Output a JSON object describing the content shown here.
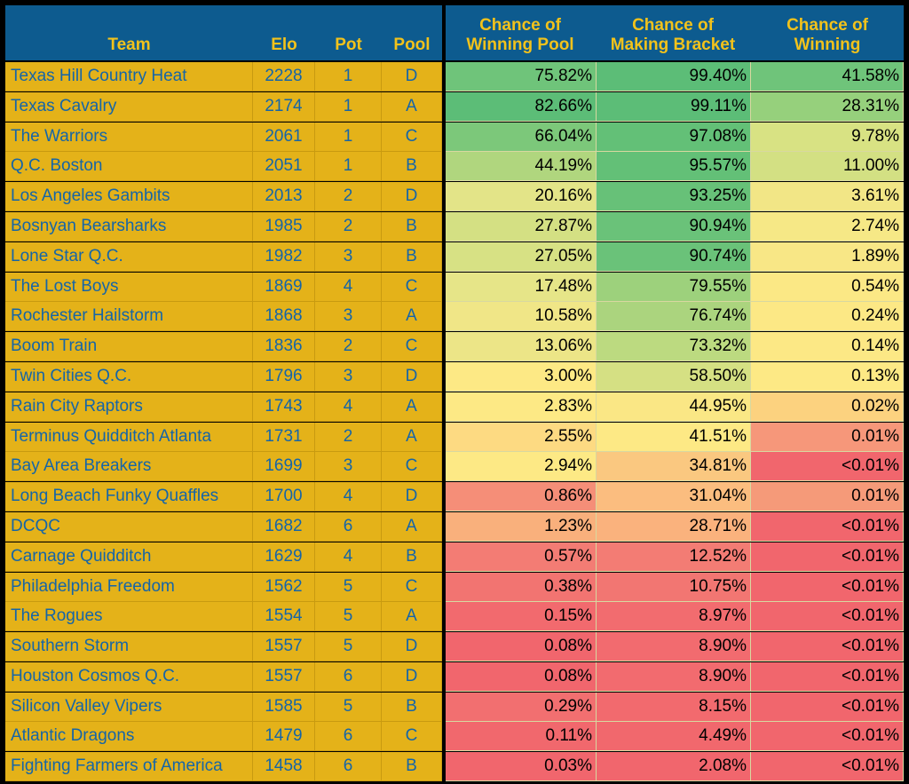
{
  "chart_data": {
    "type": "table",
    "columns": [
      "Team",
      "Elo",
      "Pot",
      "Pool",
      "Chance of Winning Pool",
      "Chance of Making Bracket",
      "Chance of Winning"
    ],
    "header_lines": [
      [
        "Team"
      ],
      [
        "Elo"
      ],
      [
        "Pot"
      ],
      [
        "Pool"
      ],
      [
        "Chance of",
        "Winning Pool"
      ],
      [
        "Chance of",
        "Making Bracket"
      ],
      [
        "Chance of",
        "Winning"
      ]
    ],
    "rows": [
      [
        "Texas Hill Country Heat",
        "2228",
        "1",
        "D",
        "75.82%",
        "99.40%",
        "41.58%"
      ],
      [
        "Texas Cavalry",
        "2174",
        "1",
        "A",
        "82.66%",
        "99.11%",
        "28.31%"
      ],
      [
        "The Warriors",
        "2061",
        "1",
        "C",
        "66.04%",
        "97.08%",
        "9.78%"
      ],
      [
        "Q.C. Boston",
        "2051",
        "1",
        "B",
        "44.19%",
        "95.57%",
        "11.00%"
      ],
      [
        "Los Angeles Gambits",
        "2013",
        "2",
        "D",
        "20.16%",
        "93.25%",
        "3.61%"
      ],
      [
        "Bosnyan Bearsharks",
        "1985",
        "2",
        "B",
        "27.87%",
        "90.94%",
        "2.74%"
      ],
      [
        "Lone Star Q.C.",
        "1982",
        "3",
        "B",
        "27.05%",
        "90.74%",
        "1.89%"
      ],
      [
        "The Lost Boys",
        "1869",
        "4",
        "C",
        "17.48%",
        "79.55%",
        "0.54%"
      ],
      [
        "Rochester Hailstorm",
        "1868",
        "3",
        "A",
        "10.58%",
        "76.74%",
        "0.24%"
      ],
      [
        "Boom Train",
        "1836",
        "2",
        "C",
        "13.06%",
        "73.32%",
        "0.14%"
      ],
      [
        "Twin Cities Q.C.",
        "1796",
        "3",
        "D",
        "3.00%",
        "58.50%",
        "0.13%"
      ],
      [
        "Rain City Raptors",
        "1743",
        "4",
        "A",
        "2.83%",
        "44.95%",
        "0.02%"
      ],
      [
        "Terminus Quidditch Atlanta",
        "1731",
        "2",
        "A",
        "2.55%",
        "41.51%",
        "0.01%"
      ],
      [
        "Bay Area Breakers",
        "1699",
        "3",
        "C",
        "2.94%",
        "34.81%",
        "<0.01%"
      ],
      [
        "Long Beach Funky Quaffles",
        "1700",
        "4",
        "D",
        "0.86%",
        "31.04%",
        "0.01%"
      ],
      [
        "DCQC",
        "1682",
        "6",
        "A",
        "1.23%",
        "28.71%",
        "<0.01%"
      ],
      [
        "Carnage Quidditch",
        "1629",
        "4",
        "B",
        "0.57%",
        "12.52%",
        "<0.01%"
      ],
      [
        "Philadelphia Freedom",
        "1562",
        "5",
        "C",
        "0.38%",
        "10.75%",
        "<0.01%"
      ],
      [
        "The Rogues",
        "1554",
        "5",
        "A",
        "0.15%",
        "8.97%",
        "<0.01%"
      ],
      [
        "Southern Storm",
        "1557",
        "5",
        "D",
        "0.08%",
        "8.90%",
        "<0.01%"
      ],
      [
        "Houston Cosmos Q.C.",
        "1557",
        "6",
        "D",
        "0.08%",
        "8.90%",
        "<0.01%"
      ],
      [
        "Silicon Valley Vipers",
        "1585",
        "5",
        "B",
        "0.29%",
        "8.15%",
        "<0.01%"
      ],
      [
        "Atlantic Dragons",
        "1479",
        "6",
        "C",
        "0.11%",
        "4.49%",
        "<0.01%"
      ],
      [
        "Fighting Farmers of America",
        "1458",
        "6",
        "B",
        "0.03%",
        "2.08%",
        "<0.01%"
      ]
    ],
    "cell_colors": [
      [
        "#6fc47a",
        "#5cbd77",
        "#6fc47a"
      ],
      [
        "#5cbd77",
        "#5cbd77",
        "#96d07c"
      ],
      [
        "#7cc87a",
        "#63c077",
        "#d8e283"
      ],
      [
        "#b0d67e",
        "#63c077",
        "#d3e083"
      ],
      [
        "#e3e488",
        "#67c178",
        "#f2e686"
      ],
      [
        "#d4e083",
        "#6ac279",
        "#f6e886"
      ],
      [
        "#d7e184",
        "#6ac279",
        "#f8e786"
      ],
      [
        "#e6e588",
        "#9dd17c",
        "#fbe885"
      ],
      [
        "#f0e687",
        "#abd47e",
        "#fce885"
      ],
      [
        "#ece587",
        "#bcda80",
        "#fce885"
      ],
      [
        "#fde985",
        "#d5e083",
        "#fde985"
      ],
      [
        "#fde985",
        "#fae785",
        "#fcd27f"
      ],
      [
        "#fdda82",
        "#fde985",
        "#f6977a"
      ],
      [
        "#fde985",
        "#fac880",
        "#f1666d"
      ],
      [
        "#f58e78",
        "#fbbd7f",
        "#f59a79"
      ],
      [
        "#f9b07c",
        "#fab27d",
        "#f1666d"
      ],
      [
        "#f37c74",
        "#f37c74",
        "#f1666d"
      ],
      [
        "#f27471",
        "#f27672",
        "#f1666d"
      ],
      [
        "#f26a6e",
        "#f26c6f",
        "#f1666d"
      ],
      [
        "#f1666d",
        "#f26b6f",
        "#f1666d"
      ],
      [
        "#f1666d",
        "#f26b6f",
        "#f1666d"
      ],
      [
        "#f26f70",
        "#f26a6e",
        "#f1666d"
      ],
      [
        "#f1686d",
        "#f1686d",
        "#f1666d"
      ],
      [
        "#f1666d",
        "#f1666d",
        "#f1666d"
      ]
    ]
  }
}
